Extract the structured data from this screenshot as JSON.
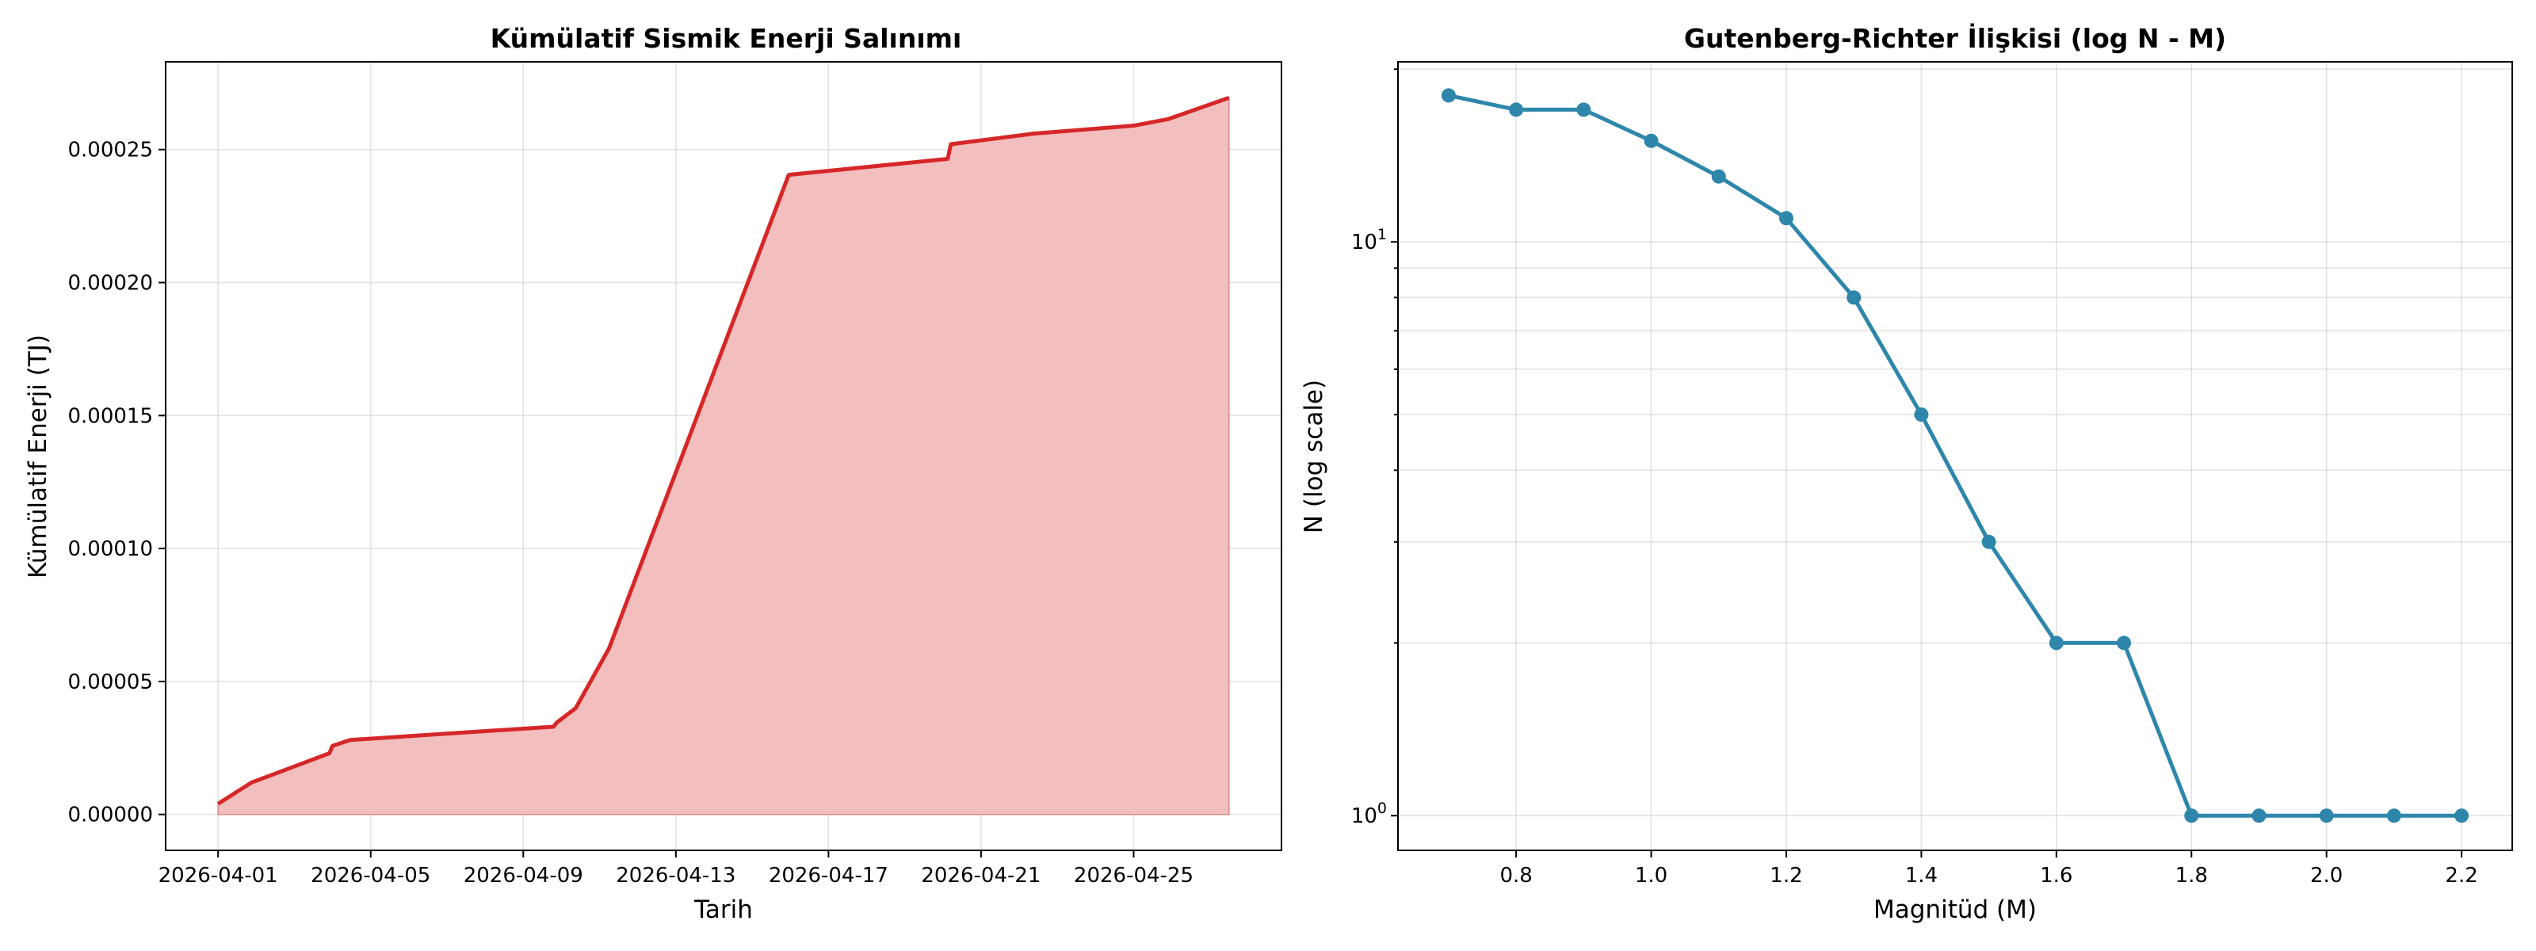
{
  "chart_data": [
    {
      "type": "area",
      "title": "Kümülatif Sismik Enerji Salınımı",
      "xlabel": "Tarih",
      "ylabel": "Kümülatif Enerji (TJ)",
      "x_ticks": [
        "2026-04-01",
        "2026-04-05",
        "2026-04-09",
        "2026-04-13",
        "2026-04-17",
        "2026-04-21",
        "2026-04-25"
      ],
      "y_ticks": [
        "0.00000",
        "0.00005",
        "0.00010",
        "0.00015",
        "0.00020",
        "0.00025"
      ],
      "x_range": [
        "2026-03-30T15:00",
        "2026-04-28T21:00"
      ],
      "ylim": [
        -1.35e-05,
        0.000283
      ],
      "grid": true,
      "line_color": "#d62728",
      "fill_color": "#f2bebe",
      "x": [
        "2026-04-01T00:00",
        "2026-04-01T21:00",
        "2026-04-03T22:00",
        "2026-04-04T00:00",
        "2026-04-04T11:00",
        "2026-04-09T19:00",
        "2026-04-09T21:00",
        "2026-04-10T09:00",
        "2026-04-11T06:00",
        "2026-04-15T23:00",
        "2026-04-20T03:00",
        "2026-04-20T05:00",
        "2026-04-22T09:00",
        "2026-04-25T00:00",
        "2026-04-25T22:00",
        "2026-04-27T12:00"
      ],
      "y": [
        4e-06,
        1.2e-05,
        2.3e-05,
        2.58e-05,
        2.8e-05,
        3.3e-05,
        3.45e-05,
        4e-05,
        6.25e-05,
        0.0002405,
        0.0002465,
        0.000252,
        0.000256,
        0.000259,
        0.0002615,
        0.0002695
      ]
    },
    {
      "type": "line",
      "title": "Gutenberg-Richter İlişkisi (log N - M)",
      "xlabel": "Magnitüd (M)",
      "ylabel": "N (log scale)",
      "x_ticks": [
        "0.8",
        "1.0",
        "1.2",
        "1.4",
        "1.6",
        "1.8",
        "2.0",
        "2.2"
      ],
      "y_ticks": [
        {
          "value": 1,
          "base": "10",
          "exp": "0"
        },
        {
          "value": 10,
          "base": "10",
          "exp": "1"
        }
      ],
      "y_scale": "log",
      "xlim": [
        0.625,
        2.275
      ],
      "ylim": [
        0.87,
        20.6
      ],
      "grid": true,
      "line_color": "#2e86ab",
      "x": [
        0.7,
        0.8,
        0.9,
        1.0,
        1.1,
        1.2,
        1.3,
        1.4,
        1.5,
        1.6,
        1.7,
        1.8,
        1.9,
        2.0,
        2.1,
        2.2
      ],
      "y": [
        18,
        17,
        17,
        15,
        13,
        11,
        8,
        5,
        3,
        2,
        2,
        1,
        1,
        1,
        1,
        1
      ]
    }
  ]
}
